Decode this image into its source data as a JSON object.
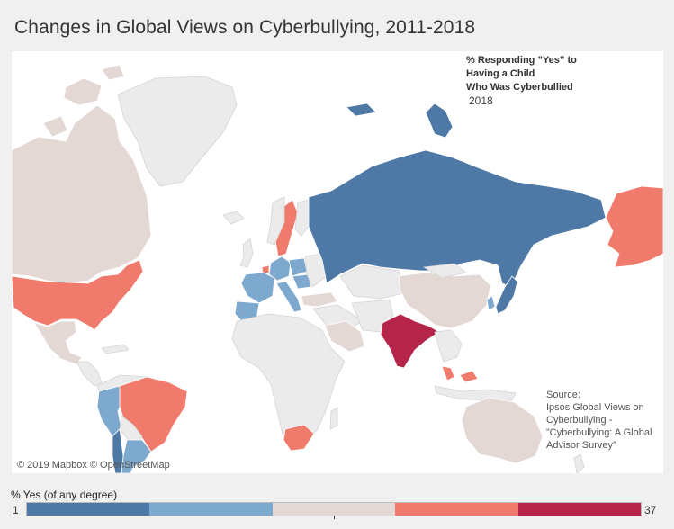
{
  "title": "Changes in Global Views on Cyberbullying, 2011-2018",
  "map_legend": {
    "line1": "% Responding ”Yes” to",
    "line2": "Having a Child",
    "line3": "Who Was Cyberbullied"
  },
  "year": "2018",
  "source": {
    "label": "Source:",
    "text": "Ipsos Global Views on Cyberbullying - ”Cyberbullying: A Global Advisor Survey”"
  },
  "attribution": "© 2019 Mapbox © OpenStreetMap",
  "color_scale": {
    "title": "% Yes (of any degree)",
    "min": "1",
    "max": "37",
    "colors": [
      "#4e79a7",
      "#7ea9cf",
      "#e4d8d5",
      "#f07b6c",
      "#b5254a"
    ]
  },
  "map_colors": {
    "no_data": "#ebebeb",
    "dark_blue": "#4e79a7",
    "light_blue": "#7ea9cf",
    "neutral": "#e4d8d5",
    "salmon": "#f07b6c",
    "crimson": "#b5254a"
  }
}
